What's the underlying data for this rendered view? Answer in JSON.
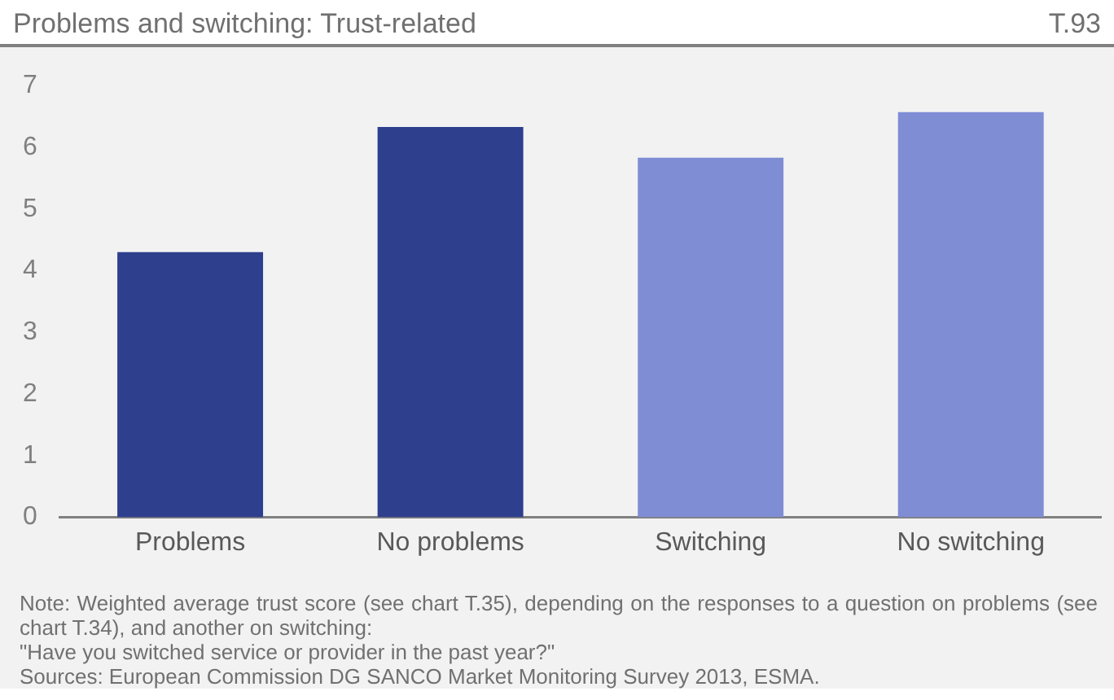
{
  "chart_data": {
    "type": "bar",
    "title": "Problems and switching: Trust-related",
    "subtitle": "T.93",
    "categories": [
      "Problems",
      "No problems",
      "Switching",
      "No switching"
    ],
    "values": [
      4.3,
      6.33,
      5.83,
      6.57
    ],
    "colors": [
      "#2e3f8e",
      "#2e3f8e",
      "#7f8dd5",
      "#7f8dd5"
    ],
    "ylim": [
      0,
      7
    ],
    "yticks": [
      0,
      1,
      2,
      3,
      4,
      5,
      6,
      7
    ],
    "grid": false,
    "legend": false,
    "annotations": [
      "Note: Weighted average trust score (see  chart T.35), depending on the responses to a question on problems (see chart T.34), and another on switching:",
      "\"Have you switched service or provider in the past year?\"",
      "Sources: European Commission DG SANCO Market Monitoring Survey 2013, ESMA."
    ]
  }
}
